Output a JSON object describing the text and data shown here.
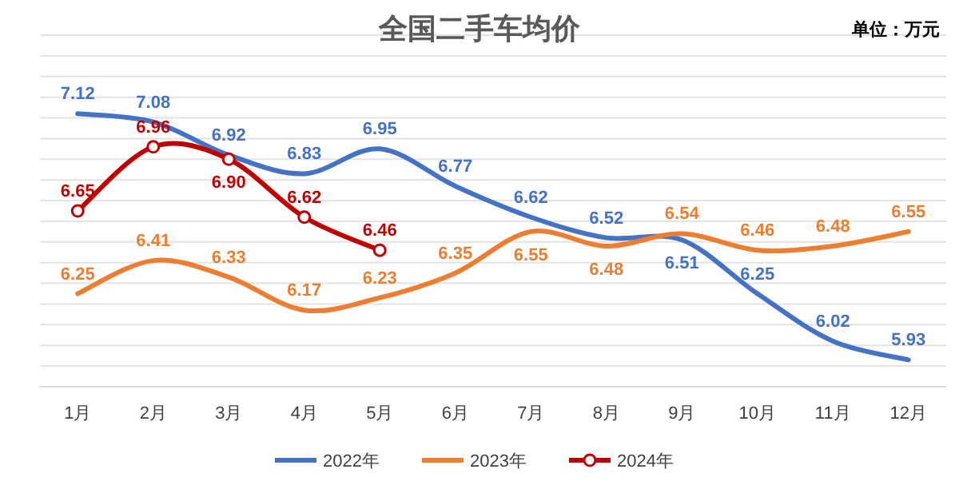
{
  "chart_data": {
    "type": "line",
    "title": "全国二手车均价",
    "annotations": [
      "单位：万元"
    ],
    "categories": [
      "1月",
      "2月",
      "3月",
      "4月",
      "5月",
      "6月",
      "7月",
      "8月",
      "9月",
      "10月",
      "11月",
      "12月"
    ],
    "series": [
      {
        "name": "2022年",
        "color": "#4472c4",
        "marker": "none",
        "values": [
          7.12,
          7.08,
          6.92,
          6.83,
          6.95,
          6.77,
          6.62,
          6.52,
          6.51,
          6.25,
          6.02,
          5.93
        ],
        "value_labels": [
          "7.12",
          "7.08",
          "6.92",
          "6.83",
          "6.95",
          "6.77",
          "6.62",
          "6.52",
          "6.51",
          "6.25",
          "6.02",
          "5.93"
        ]
      },
      {
        "name": "2023年",
        "color": "#ed7d31",
        "marker": "none",
        "values": [
          6.25,
          6.41,
          6.33,
          6.17,
          6.23,
          6.35,
          6.55,
          6.48,
          6.54,
          6.46,
          6.48,
          6.55
        ],
        "value_labels": [
          "6.25",
          "6.41",
          "6.33",
          "6.17",
          "6.23",
          "6.35",
          "6.55",
          "6.48",
          "6.54",
          "6.46",
          "6.48",
          "6.55"
        ]
      },
      {
        "name": "2024年",
        "color": "#c00000",
        "marker": "circle",
        "values": [
          6.65,
          6.96,
          6.9,
          6.62,
          6.46,
          null,
          null,
          null,
          null,
          null,
          null,
          null
        ],
        "value_labels": [
          "6.65",
          "6.96",
          "6.90",
          "6.62",
          "6.46",
          null,
          null,
          null,
          null,
          null,
          null,
          null
        ]
      }
    ],
    "ylim": [
      5.8,
      7.5
    ],
    "yticks": [
      {
        "value": 5.8,
        "label": null
      },
      {
        "value": 5.9,
        "label": null
      },
      {
        "value": 6.0,
        "label": null
      },
      {
        "value": 6.1,
        "label": null
      },
      {
        "value": 6.2,
        "label": null
      },
      {
        "value": 6.3,
        "label": null
      },
      {
        "value": 6.4,
        "label": null
      },
      {
        "value": 6.5,
        "label": null
      },
      {
        "value": 6.6,
        "label": null
      },
      {
        "value": 6.7,
        "label": null
      },
      {
        "value": 6.8,
        "label": null
      },
      {
        "value": 6.9,
        "label": null
      },
      {
        "value": 7.0,
        "label": null
      },
      {
        "value": 7.1,
        "label": null
      },
      {
        "value": 7.2,
        "label": null
      },
      {
        "value": 7.3,
        "label": null
      },
      {
        "value": 7.4,
        "label": null
      },
      {
        "value": 7.5,
        "label": null
      }
    ],
    "grid": "y",
    "tick_labels": "x",
    "legend": "bottom"
  }
}
